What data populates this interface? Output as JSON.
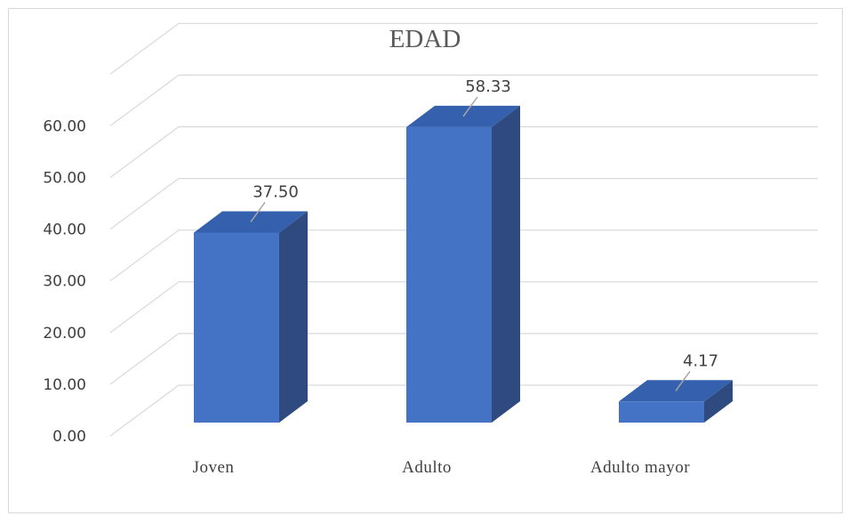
{
  "chart_data": {
    "type": "bar",
    "title": "EDAD",
    "categories": [
      "Joven",
      "Adulto",
      "Adulto mayor"
    ],
    "values": [
      37.5,
      58.33,
      4.17
    ],
    "data_labels": [
      "37.50",
      "58.33",
      "4.17"
    ],
    "y_ticks": [
      "0.00",
      "10.00",
      "20.00",
      "30.00",
      "40.00",
      "50.00",
      "60.00"
    ],
    "ylim": [
      0,
      70
    ],
    "grid": true,
    "style": "3d-column",
    "colors": {
      "bar_front": "#4472c4",
      "bar_side": "#2e4a7e",
      "bar_top": "#3560ad",
      "grid": "#d9d9d9"
    }
  }
}
